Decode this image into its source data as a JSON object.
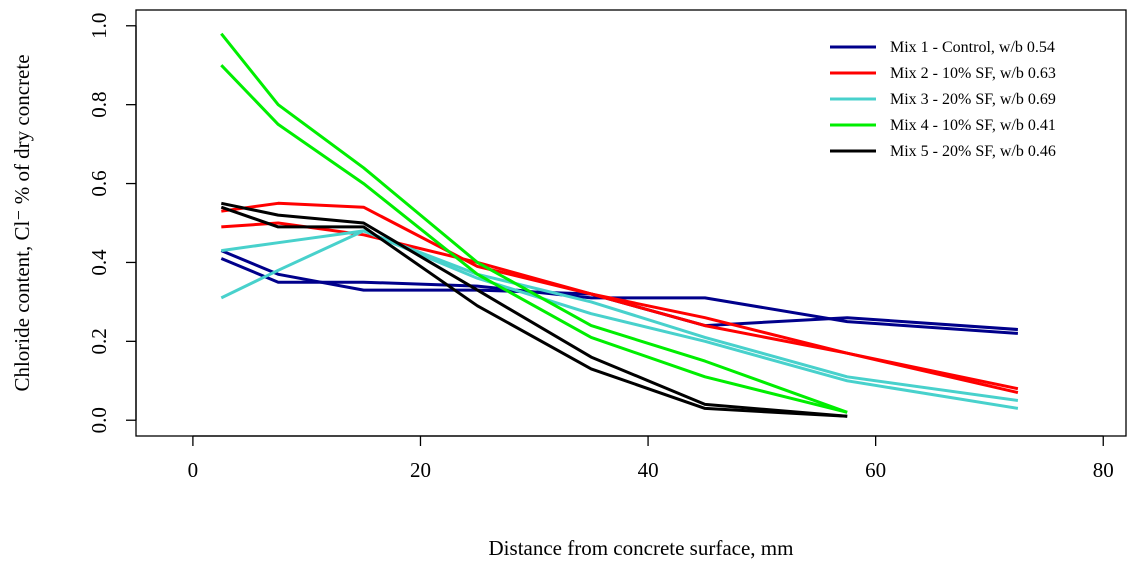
{
  "chart_data": {
    "type": "line",
    "title": "",
    "xlabel": "Distance from concrete surface, mm",
    "ylabel": "Chloride content, Cl⁻ % of dry concrete",
    "xlim": [
      -5,
      82
    ],
    "ylim": [
      -0.04,
      1.04
    ],
    "xticks": [
      0,
      20,
      40,
      60,
      80
    ],
    "yticks": [
      0.0,
      0.2,
      0.4,
      0.6,
      0.8,
      1.0
    ],
    "xtick_labels": [
      "0",
      "20",
      "40",
      "60",
      "80"
    ],
    "ytick_labels": [
      "0.0",
      "0.2",
      "0.4",
      "0.6",
      "0.8",
      "1.0"
    ],
    "grid": false,
    "legend_position": "top-right",
    "series": [
      {
        "name": "Mix 1 - Control, w/b 0.54",
        "color": "#00008B",
        "lines": [
          {
            "x": [
              2.5,
              7.5,
              15,
              25,
              35,
              45,
              57.5,
              72.5
            ],
            "y": [
              0.43,
              0.37,
              0.33,
              0.33,
              0.32,
              0.24,
              0.26,
              0.23
            ]
          },
          {
            "x": [
              2.5,
              7.5,
              15,
              25,
              35,
              45,
              57.5,
              72.5
            ],
            "y": [
              0.41,
              0.35,
              0.35,
              0.34,
              0.31,
              0.31,
              0.25,
              0.22
            ]
          }
        ]
      },
      {
        "name": "Mix 2 - 10% SF, w/b 0.63",
        "color": "#FF0000",
        "lines": [
          {
            "x": [
              2.5,
              7.5,
              15,
              25,
              35,
              45,
              57.5,
              72.5
            ],
            "y": [
              0.53,
              0.55,
              0.54,
              0.39,
              0.32,
              0.24,
              0.17,
              0.08
            ]
          },
          {
            "x": [
              2.5,
              7.5,
              15,
              25,
              35,
              45,
              57.5,
              72.5
            ],
            "y": [
              0.49,
              0.5,
              0.47,
              0.4,
              0.32,
              0.26,
              0.17,
              0.07
            ]
          }
        ]
      },
      {
        "name": "Mix 3 - 20% SF, w/b 0.69",
        "color": "#48D1CC",
        "lines": [
          {
            "x": [
              2.5,
              7.5,
              15,
              25,
              35,
              45,
              57.5,
              72.5
            ],
            "y": [
              0.43,
              0.45,
              0.48,
              0.37,
              0.3,
              0.21,
              0.11,
              0.05
            ]
          },
          {
            "x": [
              2.5,
              7.5,
              15,
              25,
              35,
              45,
              57.5,
              72.5
            ],
            "y": [
              0.31,
              0.38,
              0.48,
              0.36,
              0.27,
              0.2,
              0.1,
              0.03
            ]
          }
        ]
      },
      {
        "name": "Mix 4 - 10% SF, w/b 0.41",
        "color": "#00EE00",
        "lines": [
          {
            "x": [
              2.5,
              7.5,
              15,
              25,
              35,
              45,
              57.5
            ],
            "y": [
              0.98,
              0.8,
              0.64,
              0.4,
              0.24,
              0.15,
              0.02
            ]
          },
          {
            "x": [
              2.5,
              7.5,
              15,
              25,
              35,
              45,
              57.5
            ],
            "y": [
              0.9,
              0.75,
              0.6,
              0.37,
              0.21,
              0.11,
              0.02
            ]
          }
        ]
      },
      {
        "name": "Mix 5 - 20% SF, w/b 0.46",
        "color": "#000000",
        "lines": [
          {
            "x": [
              2.5,
              7.5,
              15,
              25,
              35,
              45,
              57.5
            ],
            "y": [
              0.55,
              0.52,
              0.5,
              0.33,
              0.16,
              0.04,
              0.01
            ]
          },
          {
            "x": [
              2.5,
              7.5,
              15,
              25,
              35,
              45,
              57.5
            ],
            "y": [
              0.54,
              0.49,
              0.49,
              0.29,
              0.13,
              0.03,
              0.01
            ]
          }
        ]
      }
    ]
  }
}
